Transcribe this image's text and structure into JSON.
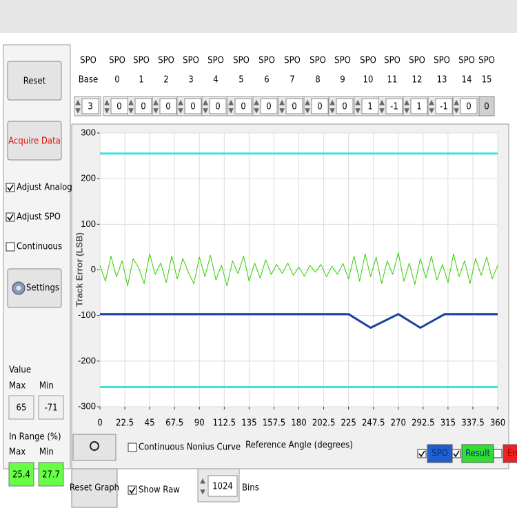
{
  "left_panel": {
    "reset": "Reset",
    "acquire": "Acquire Data",
    "checks": [
      {
        "label": "Adjust Analog",
        "checked": true
      },
      {
        "label": "Adjust SPO",
        "checked": true
      },
      {
        "label": "Continuous",
        "checked": false
      }
    ],
    "settings": "Settings",
    "value": {
      "title": "Value",
      "max_label": "Max",
      "min_label": "Min",
      "max": "65",
      "min": "-71"
    },
    "in_range": {
      "title": "In Range (%)",
      "max_label": "Max",
      "min_label": "Min",
      "max": "25.4",
      "min": "27.7"
    }
  },
  "spo": {
    "headers": [
      {
        "top": "SPO",
        "bottom": "Base"
      },
      {
        "top": "SPO",
        "bottom": "0"
      },
      {
        "top": "SPO",
        "bottom": "1"
      },
      {
        "top": "SPO",
        "bottom": "2"
      },
      {
        "top": "SPO",
        "bottom": "3"
      },
      {
        "top": "SPO",
        "bottom": "4"
      },
      {
        "top": "SPO",
        "bottom": "5"
      },
      {
        "top": "SPO",
        "bottom": "6"
      },
      {
        "top": "SPO",
        "bottom": "7"
      },
      {
        "top": "SPO",
        "bottom": "8"
      },
      {
        "top": "SPO",
        "bottom": "9"
      },
      {
        "top": "SPO",
        "bottom": "10"
      },
      {
        "top": "SPO",
        "bottom": "11"
      },
      {
        "top": "SPO",
        "bottom": "12"
      },
      {
        "top": "SPO",
        "bottom": "13"
      },
      {
        "top": "SPO",
        "bottom": "14"
      },
      {
        "top": "SPO",
        "bottom": "15"
      }
    ],
    "values": [
      "3",
      "0",
      "0",
      "0",
      "0",
      "0",
      "0",
      "0",
      "0",
      "0",
      "0",
      "1",
      "-1",
      "1",
      "-1",
      "0",
      "0"
    ]
  },
  "chart_data": {
    "type": "line",
    "x_label": "Reference Angle (degrees)",
    "y_label": "Track Error (LSB)",
    "xlim": [
      0,
      360
    ],
    "ylim": [
      -300,
      300
    ],
    "xticks": [
      0,
      22.5,
      45,
      67.5,
      90,
      112.5,
      135,
      157.5,
      180,
      202.5,
      225,
      247.5,
      270,
      292.5,
      315,
      337.5,
      360
    ],
    "yticks": [
      -300,
      -200,
      -100,
      0,
      100,
      200,
      300
    ],
    "grid": true,
    "series": [
      {
        "color": "#44dede",
        "width": 3,
        "x": [
          0,
          360
        ],
        "values": [
          255,
          255
        ]
      },
      {
        "color": "#44dede",
        "width": 3,
        "x": [
          0,
          360
        ],
        "values": [
          -257,
          -257
        ]
      },
      {
        "color": "#33cc00",
        "width": 1,
        "x": [
          0,
          5,
          10,
          15,
          20,
          25,
          30,
          35,
          40,
          45,
          50,
          55,
          60,
          65,
          70,
          75,
          80,
          85,
          90,
          95,
          100,
          105,
          110,
          115,
          120,
          125,
          130,
          135,
          140,
          145,
          150,
          155,
          160,
          165,
          170,
          175,
          180,
          185,
          190,
          195,
          200,
          205,
          210,
          215,
          220,
          225,
          230,
          235,
          240,
          245,
          250,
          255,
          260,
          265,
          270,
          275,
          280,
          285,
          290,
          295,
          300,
          305,
          310,
          315,
          320,
          325,
          330,
          335,
          340,
          345,
          350,
          355,
          360
        ],
        "values": [
          10,
          -25,
          30,
          -15,
          20,
          -35,
          25,
          5,
          -30,
          35,
          -10,
          15,
          -28,
          30,
          -20,
          25,
          -5,
          -30,
          28,
          -15,
          32,
          -22,
          10,
          -35,
          20,
          -8,
          30,
          -25,
          15,
          -18,
          22,
          -10,
          12,
          -8,
          15,
          -12,
          6,
          -14,
          10,
          -5,
          12,
          -15,
          8,
          -10,
          14,
          -20,
          30,
          -25,
          35,
          -15,
          28,
          -30,
          20,
          -10,
          38,
          -25,
          15,
          -32,
          25,
          -18,
          30,
          -22,
          12,
          -28,
          35,
          -15,
          20,
          -30,
          25,
          -12,
          28,
          -20,
          10
        ]
      },
      {
        "color": "#1a3fa0",
        "width": 3,
        "x": [
          0,
          225,
          245,
          270,
          290,
          312,
          360
        ],
        "values": [
          -97,
          -97,
          -127,
          -97,
          -127,
          -97,
          -97
        ]
      }
    ],
    "continuous_nonius": {
      "label": "Continuous Nonius Curve",
      "checked": false
    },
    "legend": [
      {
        "name": "SPO",
        "color": "#1f5fd0",
        "checked": true
      },
      {
        "name": "Result",
        "color": "#33dd33",
        "checked": true
      },
      {
        "name": "Error",
        "color": "#ee2222",
        "checked": false
      }
    ]
  },
  "bottom": {
    "reset_graph": "Reset Graph",
    "show_raw": {
      "label": "Show Raw",
      "checked": true
    },
    "bins_value": "1024",
    "bins_label": "Bins"
  }
}
